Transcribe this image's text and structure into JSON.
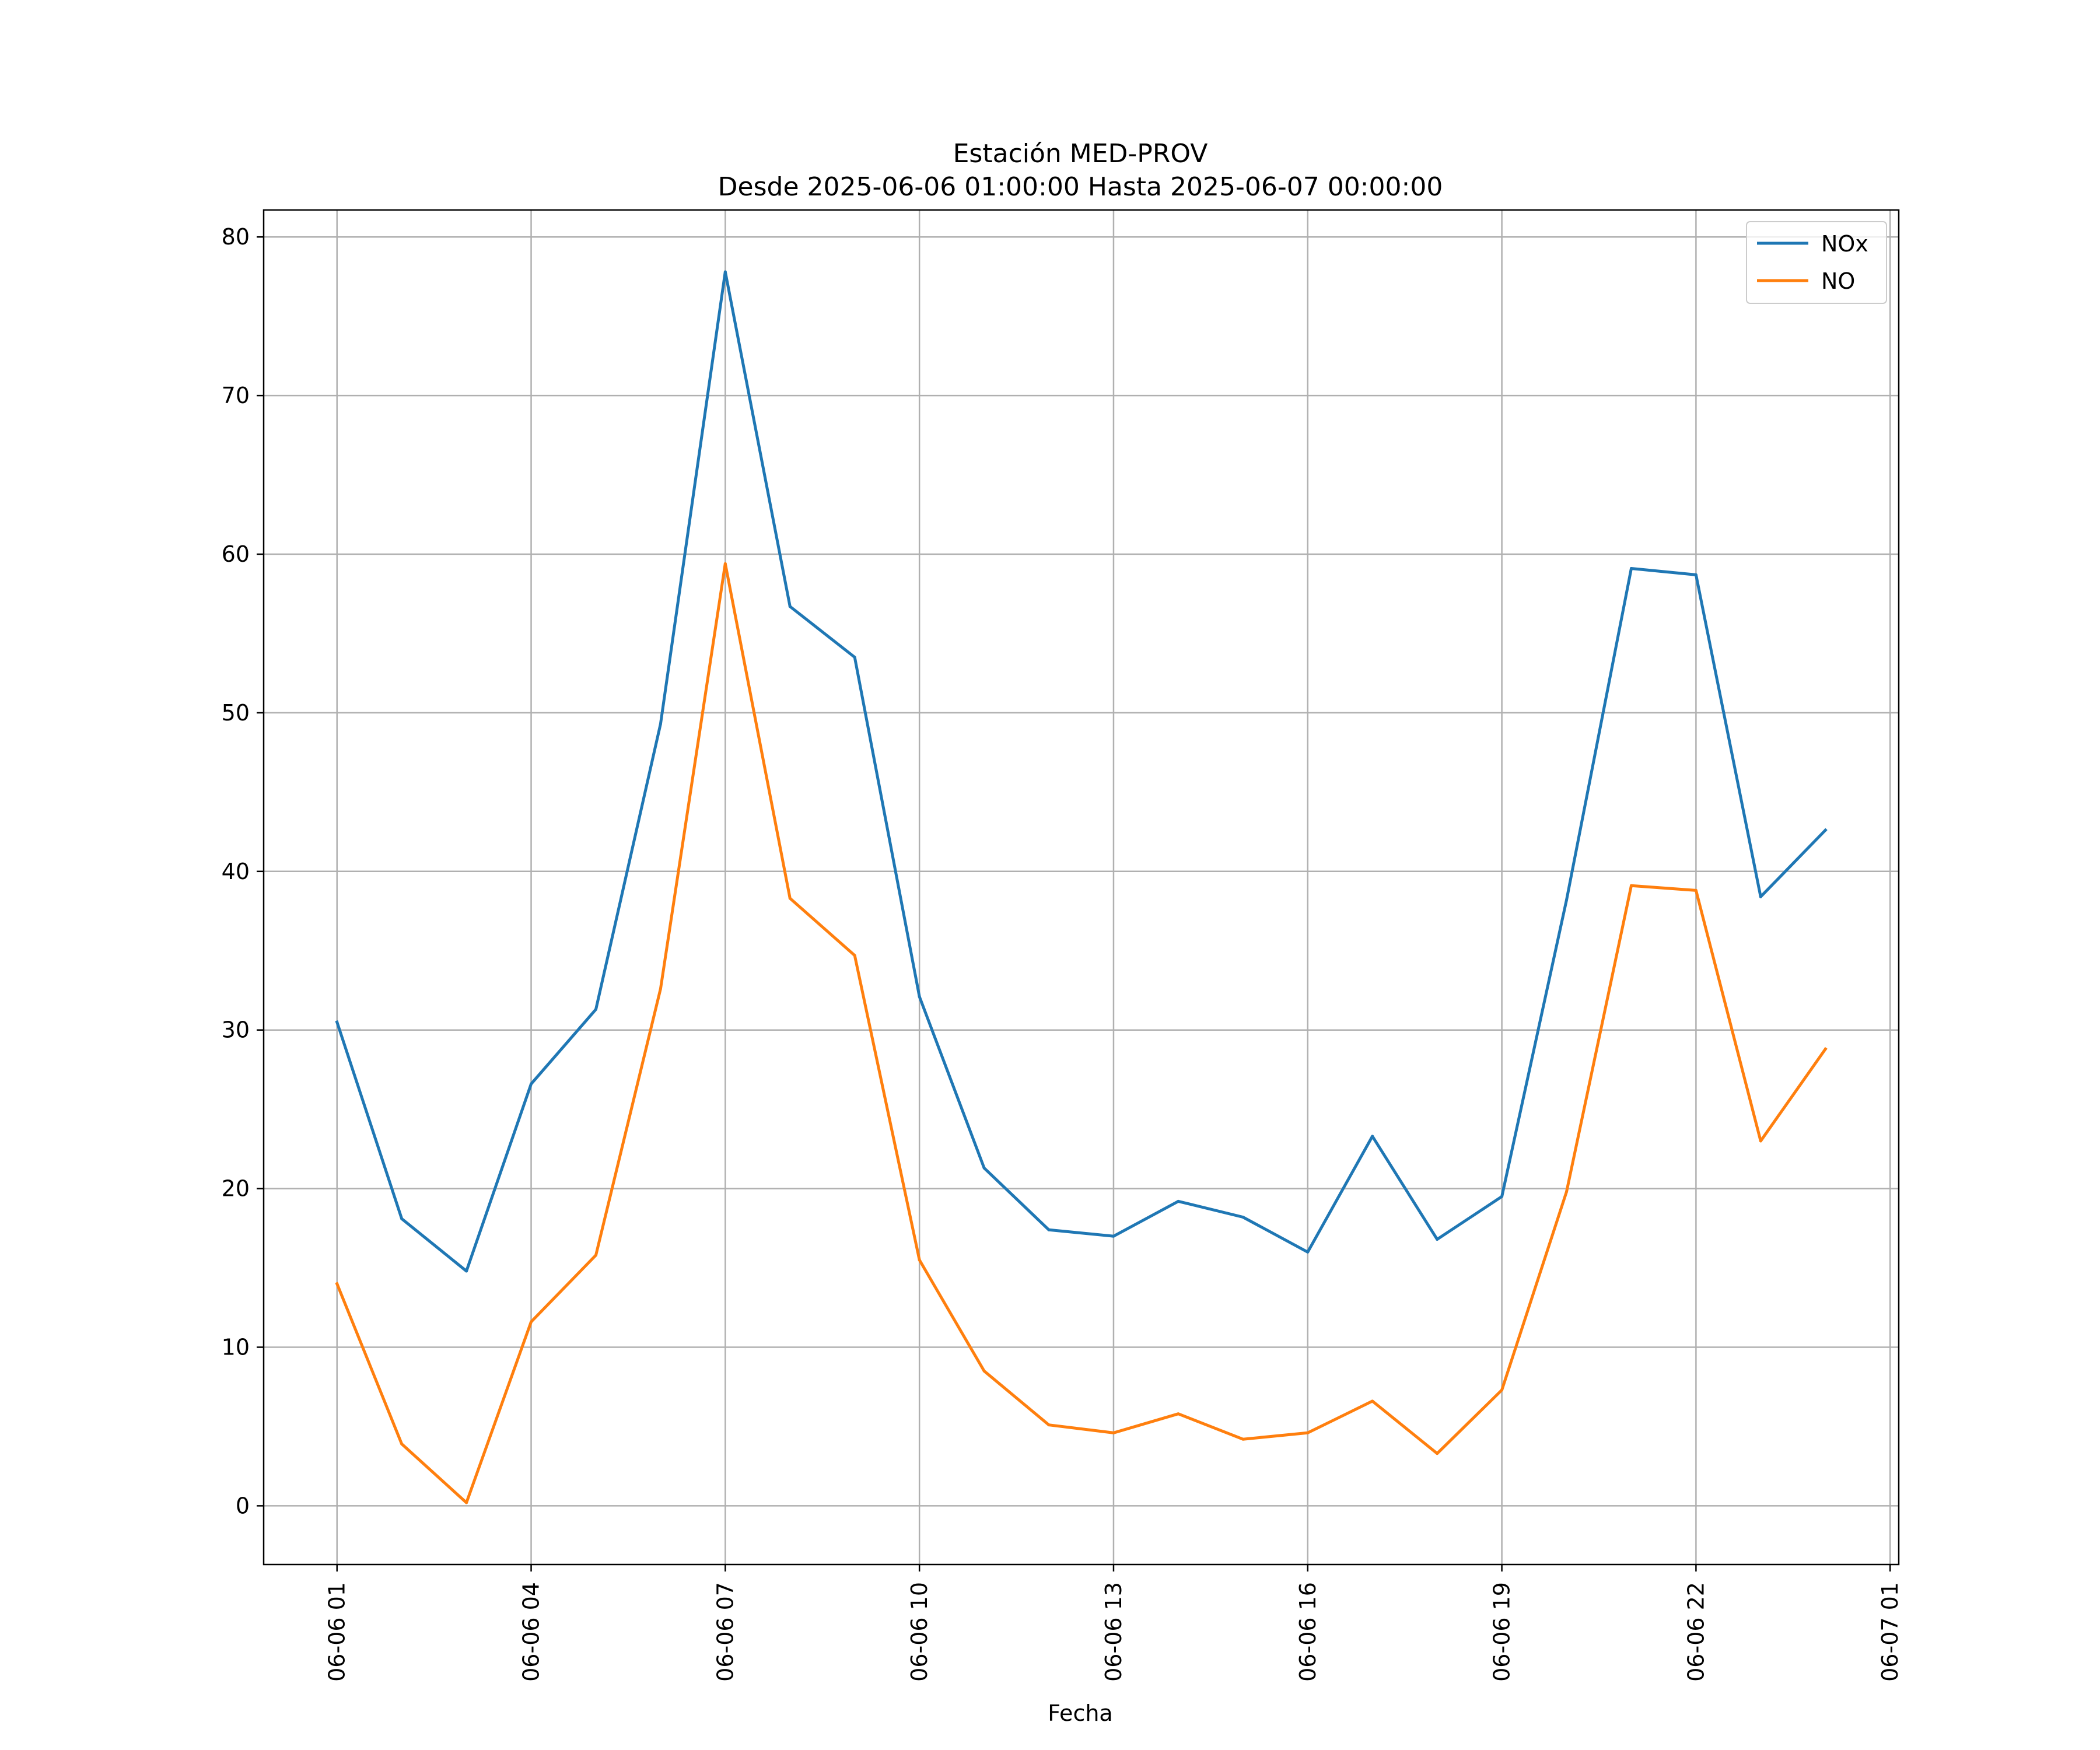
{
  "chart_data": {
    "type": "line",
    "title": "Estación MED-PROV",
    "subtitle": "Desde 2025-06-06 01:00:00 Hasta 2025-06-07 00:00:00",
    "xlabel": "Fecha",
    "ylabel": "",
    "x": [
      "2025-06-06 01:00",
      "2025-06-06 02:00",
      "2025-06-06 03:00",
      "2025-06-06 04:00",
      "2025-06-06 05:00",
      "2025-06-06 06:00",
      "2025-06-06 07:00",
      "2025-06-06 08:00",
      "2025-06-06 09:00",
      "2025-06-06 10:00",
      "2025-06-06 11:00",
      "2025-06-06 12:00",
      "2025-06-06 13:00",
      "2025-06-06 14:00",
      "2025-06-06 15:00",
      "2025-06-06 16:00",
      "2025-06-06 17:00",
      "2025-06-06 18:00",
      "2025-06-06 19:00",
      "2025-06-06 20:00",
      "2025-06-06 21:00",
      "2025-06-06 22:00",
      "2025-06-06 23:00",
      "2025-06-07 00:00"
    ],
    "series": [
      {
        "name": "NOx",
        "color": "#1f77b4",
        "values": [
          30.5,
          18.1,
          14.8,
          26.6,
          31.3,
          49.3,
          77.8,
          56.7,
          53.5,
          32.1,
          21.3,
          17.4,
          17.0,
          19.2,
          18.2,
          16.0,
          23.3,
          16.8,
          19.5,
          38.2,
          59.1,
          58.7,
          38.4,
          42.6
        ]
      },
      {
        "name": "NO",
        "color": "#ff7f0e",
        "values": [
          14.0,
          3.9,
          0.2,
          11.6,
          15.8,
          32.6,
          59.4,
          38.3,
          34.7,
          15.5,
          8.5,
          5.1,
          4.6,
          5.8,
          4.2,
          4.6,
          6.6,
          3.3,
          7.3,
          19.8,
          39.1,
          38.8,
          23.0,
          28.8
        ]
      }
    ],
    "x_ticks": [
      "06-06 01",
      "06-06 04",
      "06-06 07",
      "06-06 10",
      "06-06 13",
      "06-06 16",
      "06-06 19",
      "06-06 22",
      "06-07 01"
    ],
    "x_tick_values": [
      "2025-06-06 01:00",
      "2025-06-06 04:00",
      "2025-06-06 07:00",
      "2025-06-06 10:00",
      "2025-06-06 13:00",
      "2025-06-06 16:00",
      "2025-06-06 19:00",
      "2025-06-06 22:00",
      "2025-06-07 01:00"
    ],
    "xlim": [
      "2025-06-05 23:52",
      "2025-06-07 01:08"
    ],
    "y_ticks": [
      "0",
      "10",
      "20",
      "30",
      "40",
      "50",
      "60",
      "70",
      "80"
    ],
    "ylim": [
      -3.7,
      81.7
    ],
    "grid": true,
    "legend_position": "top-right"
  }
}
